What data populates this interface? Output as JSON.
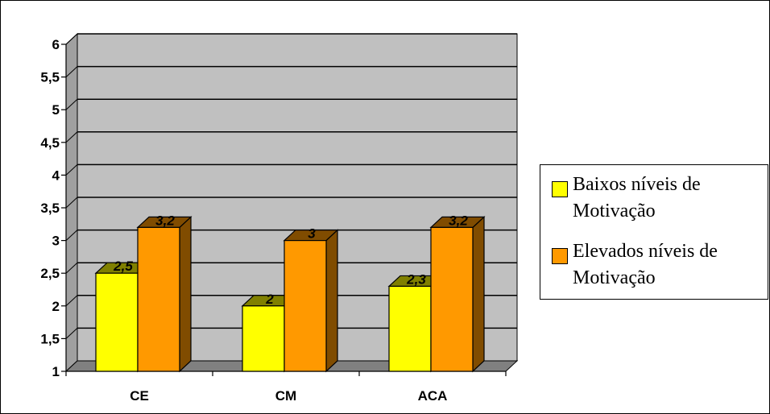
{
  "chart_data": {
    "type": "bar",
    "categories": [
      "CE",
      "CM",
      "ACA"
    ],
    "series": [
      {
        "name": "Baixos níveis de Motivação",
        "values": [
          2.5,
          2,
          2.3
        ],
        "labels": [
          "2,5",
          "2",
          "2,3"
        ],
        "color": "#ffff00",
        "side_color": "#808000"
      },
      {
        "name": "Elevados níveis de Motivação",
        "values": [
          3.2,
          3,
          3.2
        ],
        "labels": [
          "3,2",
          "3",
          "3,2"
        ],
        "color": "#ff9900",
        "side_color": "#804c00"
      }
    ],
    "ylim": [
      1,
      6
    ],
    "yticks": [
      "1",
      "1,5",
      "2",
      "2,5",
      "3",
      "3,5",
      "4",
      "4,5",
      "5",
      "5,5",
      "6"
    ],
    "ytick_values": [
      1,
      1.5,
      2,
      2.5,
      3,
      3.5,
      4,
      4.5,
      5,
      5.5,
      6
    ],
    "grid": true,
    "three_d": true,
    "plot_background": "#c0c0c0",
    "legend_position": "right"
  },
  "legend": {
    "items": [
      {
        "label": "Baixos níveis de Motivação",
        "color": "#ffff00"
      },
      {
        "label": "Elevados níveis de Motivação",
        "color": "#ff9900"
      }
    ]
  }
}
